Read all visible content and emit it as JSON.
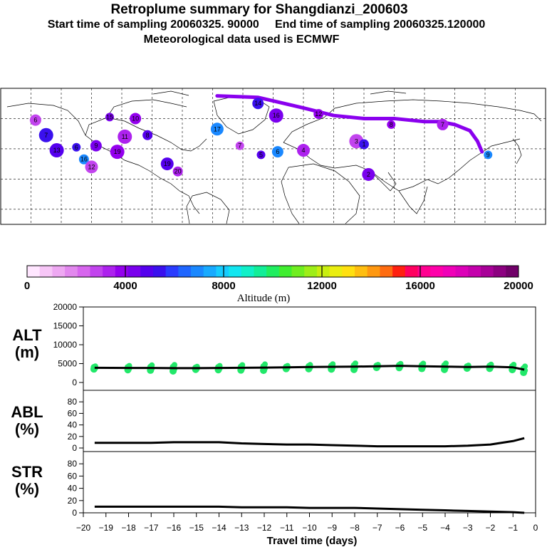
{
  "titles": {
    "line1": "Retroplume summary for Shangdianzi_200603",
    "line2": "Start time of sampling 20060325. 90000     End time of sampling 20060325.120000",
    "line3": "Meteorological data used is ECMWF"
  },
  "colorbar": {
    "title": "Altitude (m)",
    "ticks": [
      "0",
      "4000",
      "8000",
      "12000",
      "16000",
      "20000"
    ],
    "colors": [
      "#ffe6ff",
      "#f7c6f7",
      "#eea8f2",
      "#e288ee",
      "#d766ee",
      "#c244ee",
      "#ad22ee",
      "#9400ee",
      "#7a00ee",
      "#5500ee",
      "#3a10ee",
      "#2a3cff",
      "#1f66ff",
      "#1a88ff",
      "#18aaff",
      "#16ccff",
      "#12e6f0",
      "#10f0c8",
      "#12ee98",
      "#20ee60",
      "#40ee30",
      "#70ee20",
      "#9eee18",
      "#c8ee10",
      "#eaee10",
      "#ffe010",
      "#ffbe10",
      "#ff9810",
      "#ff6c10",
      "#ff2010",
      "#ff0060",
      "#ff0090",
      "#ff00aa",
      "#f000b8",
      "#dc00b8",
      "#c400ac",
      "#a80098",
      "#8c0080",
      "#700068"
    ]
  },
  "map_sites": [
    {
      "n": "15",
      "lon": -108,
      "lat": 71
    },
    {
      "n": "10",
      "lon": -91,
      "lat": 70
    },
    {
      "n": "11",
      "lon": -98,
      "lat": 58
    },
    {
      "n": "8",
      "lon": -83,
      "lat": 59
    },
    {
      "n": "17",
      "lon": -37,
      "lat": 63
    },
    {
      "n": "7",
      "lon": -22,
      "lat": 52
    },
    {
      "n": "14",
      "lon": -10,
      "lat": 80
    },
    {
      "n": "16",
      "lon": 2,
      "lat": 72
    },
    {
      "n": "12",
      "lon": 30,
      "lat": 73
    },
    {
      "n": "4",
      "lon": 20,
      "lat": 49
    },
    {
      "n": "5",
      "lon": -8,
      "lat": 46
    },
    {
      "n": "6",
      "lon": 3,
      "lat": 48
    },
    {
      "n": "3",
      "lon": 55,
      "lat": 55
    },
    {
      "n": "1",
      "lon": 60,
      "lat": 53
    },
    {
      "n": "2",
      "lon": 63,
      "lat": 33
    },
    {
      "n": "8",
      "lon": 78,
      "lat": 66
    },
    {
      "n": "7",
      "lon": 112,
      "lat": 66
    },
    {
      "n": "13",
      "lon": -143,
      "lat": 49
    },
    {
      "n": "16",
      "lon": -125,
      "lat": 43
    },
    {
      "n": "12",
      "lon": -120,
      "lat": 38
    },
    {
      "n": "6",
      "lon": -130,
      "lat": 51
    },
    {
      "n": "9",
      "lon": -117,
      "lat": 52
    },
    {
      "n": "19",
      "lon": -103,
      "lat": 48
    },
    {
      "n": "20",
      "lon": -63,
      "lat": 35
    },
    {
      "n": "19",
      "lon": -70,
      "lat": 40
    },
    {
      "n": "9",
      "lon": 142,
      "lat": 46
    },
    {
      "n": "6",
      "lon": -157,
      "lat": 69
    },
    {
      "n": "7",
      "lon": -150,
      "lat": 59
    }
  ],
  "chart_data": [
    {
      "type": "line",
      "label": "ALT",
      "unit": "(m)",
      "x": [
        -19.5,
        -18,
        -17,
        -16,
        -15,
        -14,
        -13,
        -12,
        -11,
        -10,
        -9,
        -8,
        -7,
        -6,
        -5,
        -4,
        -3,
        -2,
        -1,
        -0.5
      ],
      "values": [
        3900,
        3850,
        3850,
        3800,
        3800,
        3850,
        3900,
        3950,
        4000,
        4100,
        4150,
        4200,
        4300,
        4400,
        4300,
        4200,
        4100,
        4200,
        4000,
        3400
      ],
      "ylim": [
        0,
        20000
      ],
      "yticks": [
        "0",
        "5000",
        "10000",
        "15000",
        "20000"
      ]
    },
    {
      "type": "line",
      "label": "ABL",
      "unit": "(%)",
      "x": [
        -19.5,
        -18,
        -17,
        -16,
        -15,
        -14,
        -13,
        -12,
        -11,
        -10,
        -9,
        -8,
        -7,
        -6,
        -5,
        -4,
        -3,
        -2,
        -1,
        -0.5
      ],
      "values": [
        9,
        9,
        9,
        10,
        10,
        10,
        8,
        7,
        6,
        6,
        5,
        4,
        3,
        3,
        3,
        3,
        4,
        6,
        12,
        17
      ],
      "ylim": [
        0,
        100
      ],
      "yticks": [
        "0",
        "20",
        "40",
        "60",
        "80"
      ]
    },
    {
      "type": "line",
      "label": "STR",
      "unit": "(%)",
      "x": [
        -19.5,
        -18,
        -17,
        -16,
        -15,
        -14,
        -13,
        -12,
        -11,
        -10,
        -9,
        -8,
        -7,
        -6,
        -5,
        -4,
        -3,
        -2,
        -1,
        -0.5
      ],
      "values": [
        10,
        10,
        10,
        10,
        10,
        10,
        9,
        9,
        9,
        8,
        8,
        8,
        7,
        6,
        5,
        4,
        3,
        2,
        1,
        0
      ],
      "ylim": [
        0,
        100
      ],
      "yticks": [
        "0",
        "20",
        "40",
        "60",
        "80"
      ]
    }
  ],
  "x_axis": {
    "title": "Travel time (days)",
    "ticks": [
      "−20",
      "−19",
      "−18",
      "−17",
      "−16",
      "−15",
      "−14",
      "−13",
      "−12",
      "−11",
      "−10",
      "−9",
      "−8",
      "−7",
      "−6",
      "−5",
      "−4",
      "−3",
      "−2",
      "−1",
      "0"
    ],
    "range": [
      -20,
      0
    ]
  }
}
